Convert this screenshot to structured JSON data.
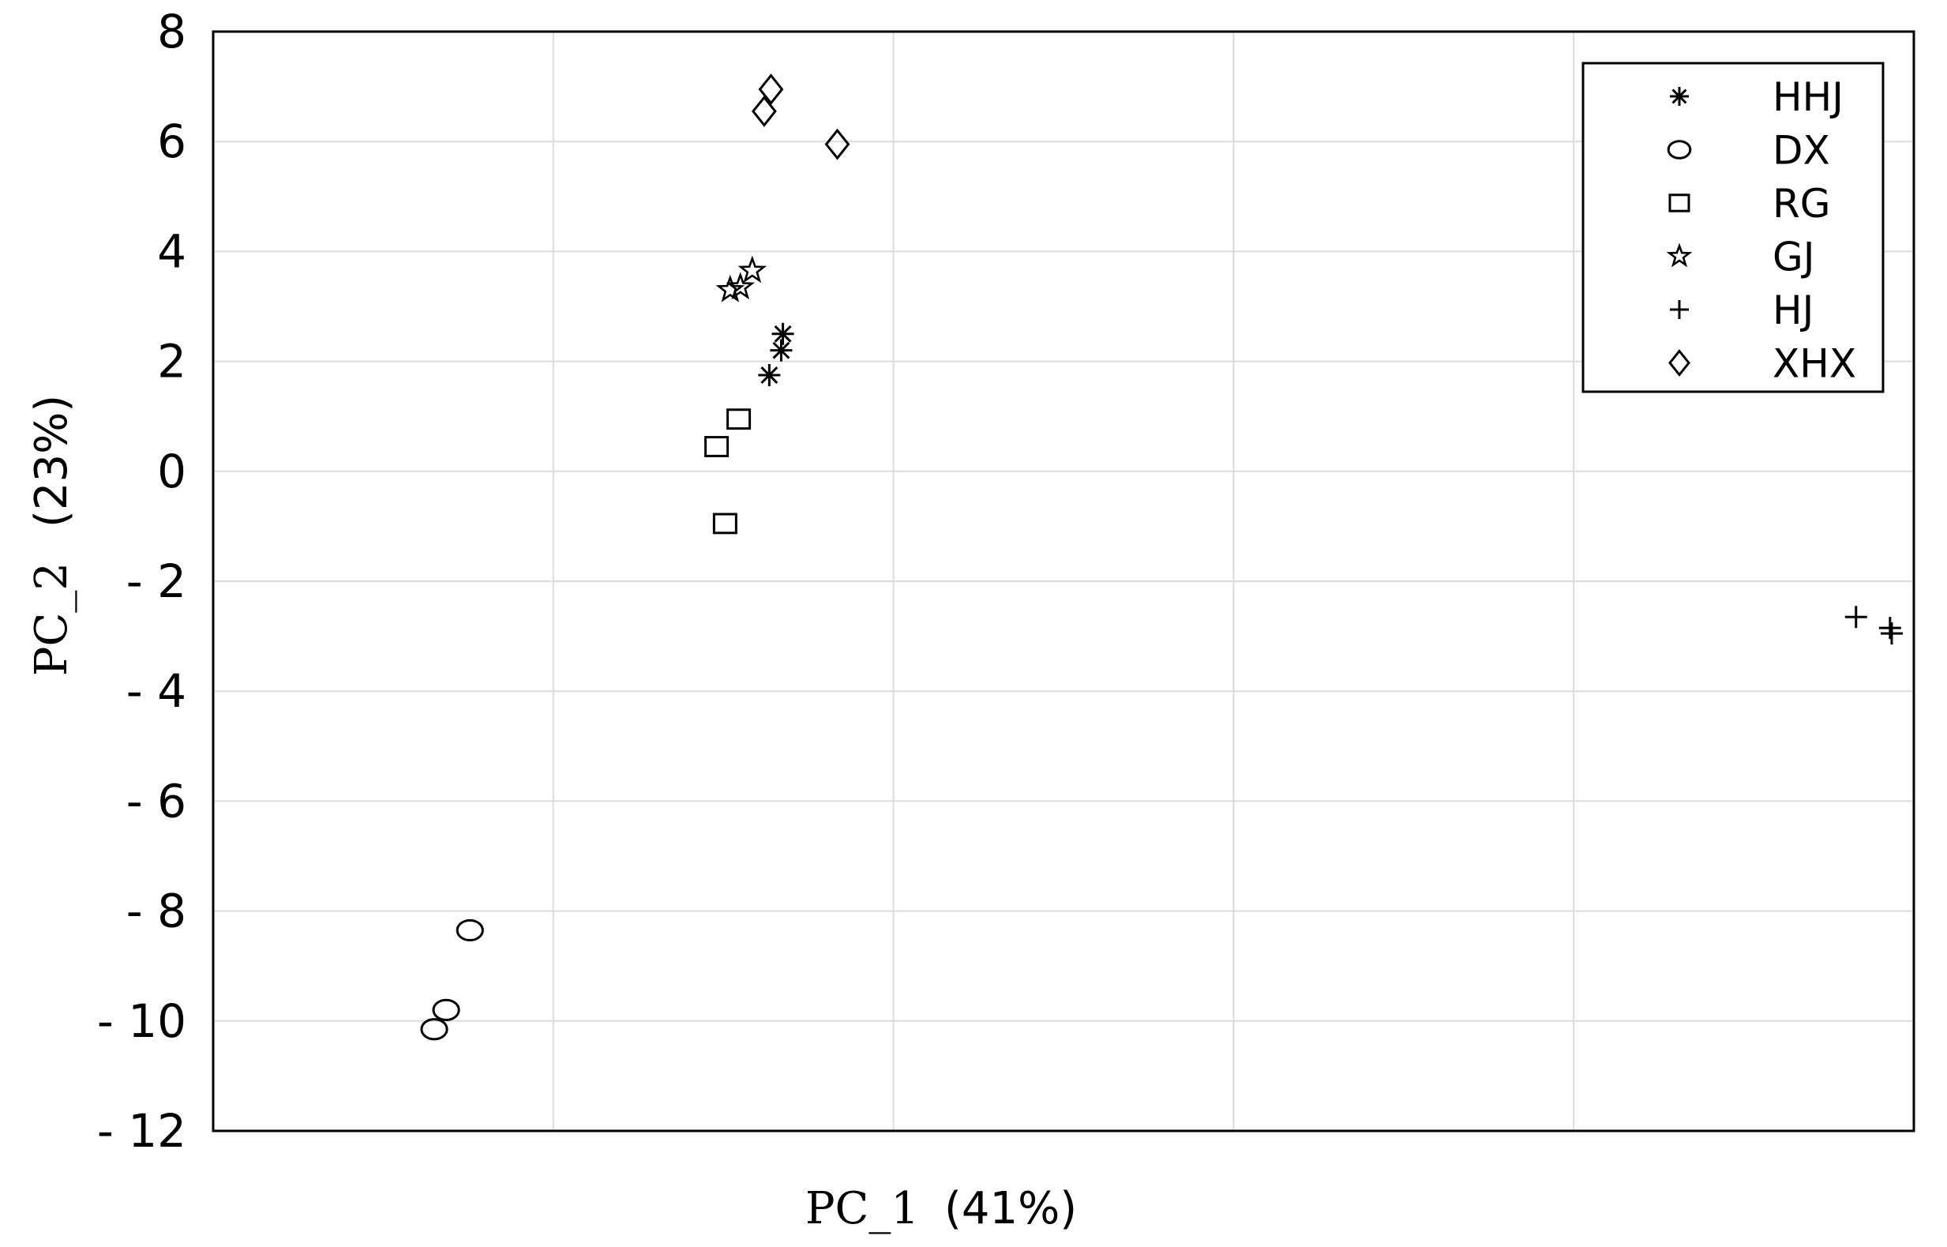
{
  "chart_data": {
    "type": "scatter",
    "xlabel": {
      "main": "PC_1",
      "pct": "(41%)"
    },
    "ylabel": {
      "main": "PC_2",
      "pct": "(23%)"
    },
    "ylim": [
      -12,
      8
    ],
    "yticks": [
      8,
      6,
      4,
      2,
      0,
      -2,
      -4,
      -6,
      -8,
      -10,
      -12
    ],
    "ytick_labels": [
      "8",
      "6",
      "4",
      "2",
      "0",
      "- 2",
      "- 4",
      "- 6",
      "- 8",
      "- 10",
      "- 12"
    ],
    "x_gridlines": 5,
    "x_tick_labels_shown": false,
    "grid": true,
    "legend_position": "top-right",
    "series": [
      {
        "name": "HHJ",
        "marker": "asterisk",
        "points": [
          [
            0.335,
            2.5
          ],
          [
            0.334,
            2.2
          ],
          [
            0.327,
            1.75
          ]
        ]
      },
      {
        "name": "DX",
        "marker": "circle",
        "points": [
          [
            0.151,
            -8.35
          ],
          [
            0.137,
            -9.8
          ],
          [
            0.13,
            -10.15
          ]
        ]
      },
      {
        "name": "RG",
        "marker": "square",
        "points": [
          [
            0.309,
            0.95
          ],
          [
            0.296,
            0.45
          ],
          [
            0.301,
            -0.95
          ]
        ]
      },
      {
        "name": "GJ",
        "marker": "star",
        "points": [
          [
            0.317,
            3.65
          ],
          [
            0.31,
            3.35
          ],
          [
            0.304,
            3.3
          ]
        ]
      },
      {
        "name": "HJ",
        "marker": "plus",
        "points": [
          [
            0.966,
            -2.65
          ],
          [
            0.986,
            -2.85
          ],
          [
            0.987,
            -2.95
          ]
        ]
      },
      {
        "name": "XHX",
        "marker": "diamond",
        "points": [
          [
            0.328,
            6.95
          ],
          [
            0.324,
            6.55
          ],
          [
            0.367,
            5.95
          ]
        ]
      }
    ]
  }
}
